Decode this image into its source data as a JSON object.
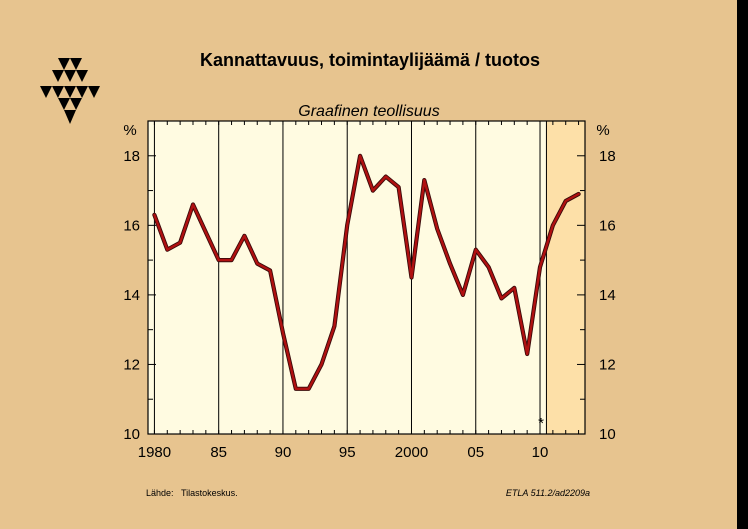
{
  "chart_data": {
    "type": "line",
    "title": "Kannattavuus, toimintaylijäämä / tuotos",
    "subtitle": "Graafinen teollisuus",
    "ylabel_left": "%",
    "ylabel_right": "%",
    "ylim": [
      10,
      19
    ],
    "yticks": [
      10,
      12,
      14,
      16,
      18
    ],
    "xlim": [
      1979.5,
      2013.5
    ],
    "xticks": [
      {
        "value": 1980,
        "label": "1980"
      },
      {
        "value": 1985,
        "label": "85"
      },
      {
        "value": 1990,
        "label": "90"
      },
      {
        "value": 1995,
        "label": "95"
      },
      {
        "value": 2000,
        "label": "2000"
      },
      {
        "value": 2005,
        "label": "05"
      },
      {
        "value": 2010,
        "label": "10"
      }
    ],
    "forecast_from": 2010.5,
    "forecast_marker": "*",
    "grid": "vertical",
    "line_color": "#b01010",
    "series": [
      {
        "x": [
          1980,
          1981,
          1982,
          1983,
          1984,
          1985,
          1986,
          1987,
          1988,
          1989,
          1990,
          1991,
          1992,
          1993,
          1994,
          1995,
          1996,
          1997,
          1998,
          1999,
          2000,
          2001,
          2002,
          2003,
          2004,
          2005,
          2006,
          2007,
          2008,
          2009,
          2010,
          2011,
          2012,
          2013
        ],
        "values": [
          16.3,
          15.3,
          15.5,
          16.6,
          15.8,
          15.0,
          15.0,
          15.7,
          14.9,
          14.7,
          12.9,
          11.3,
          11.3,
          12.0,
          13.1,
          16.0,
          18.0,
          17.0,
          17.4,
          17.1,
          14.5,
          17.3,
          15.9,
          14.9,
          14.0,
          15.3,
          14.8,
          13.9,
          14.2,
          12.3,
          14.8,
          16.0,
          16.7,
          16.9
        ]
      }
    ]
  },
  "footer": {
    "source_label": "Lähde:",
    "source_value": "Tilastokeskus.",
    "code": "ETLA 511.2/ad2209a"
  },
  "logo": {
    "name": "etla-logo-icon"
  }
}
